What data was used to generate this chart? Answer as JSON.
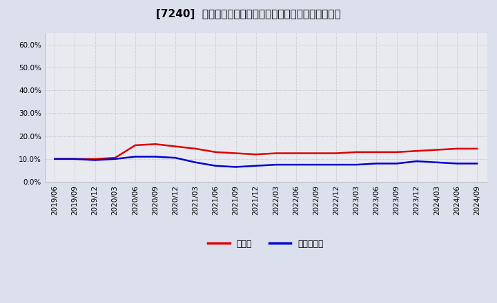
{
  "title": "[7240]  現預金、有利子負債の総資産に対する比率の推移",
  "ylim": [
    0.0,
    0.65
  ],
  "yticks": [
    0.0,
    0.1,
    0.2,
    0.3,
    0.4,
    0.5,
    0.6
  ],
  "ytick_labels": [
    "0.0%",
    "10.0%",
    "20.0%",
    "30.0%",
    "40.0%",
    "50.0%",
    "60.0%"
  ],
  "x_labels": [
    "2019/06",
    "2019/09",
    "2019/12",
    "2020/03",
    "2020/06",
    "2020/09",
    "2020/12",
    "2021/03",
    "2021/06",
    "2021/09",
    "2021/12",
    "2022/03",
    "2022/06",
    "2022/09",
    "2022/12",
    "2023/03",
    "2023/06",
    "2023/09",
    "2023/12",
    "2024/03",
    "2024/06",
    "2024/09"
  ],
  "cash_values": [
    0.1,
    0.1,
    0.1,
    0.105,
    0.16,
    0.165,
    0.155,
    0.145,
    0.13,
    0.125,
    0.12,
    0.125,
    0.125,
    0.125,
    0.125,
    0.13,
    0.13,
    0.13,
    0.135,
    0.14,
    0.145,
    0.145
  ],
  "debt_values": [
    0.1,
    0.1,
    0.095,
    0.1,
    0.11,
    0.11,
    0.105,
    0.085,
    0.07,
    0.065,
    0.07,
    0.075,
    0.075,
    0.075,
    0.075,
    0.075,
    0.08,
    0.08,
    0.09,
    0.085,
    0.08,
    0.08
  ],
  "cash_color": "#dd0000",
  "debt_color": "#0000cc",
  "background_color": "#dce0ec",
  "plot_bg_color": "#e8eaf0",
  "grid_color": "#aaaaaa",
  "legend_cash": "現預金",
  "legend_debt": "有利子負債",
  "title_fontsize": 11,
  "tick_fontsize": 7.5,
  "legend_fontsize": 9,
  "line_width": 1.8
}
